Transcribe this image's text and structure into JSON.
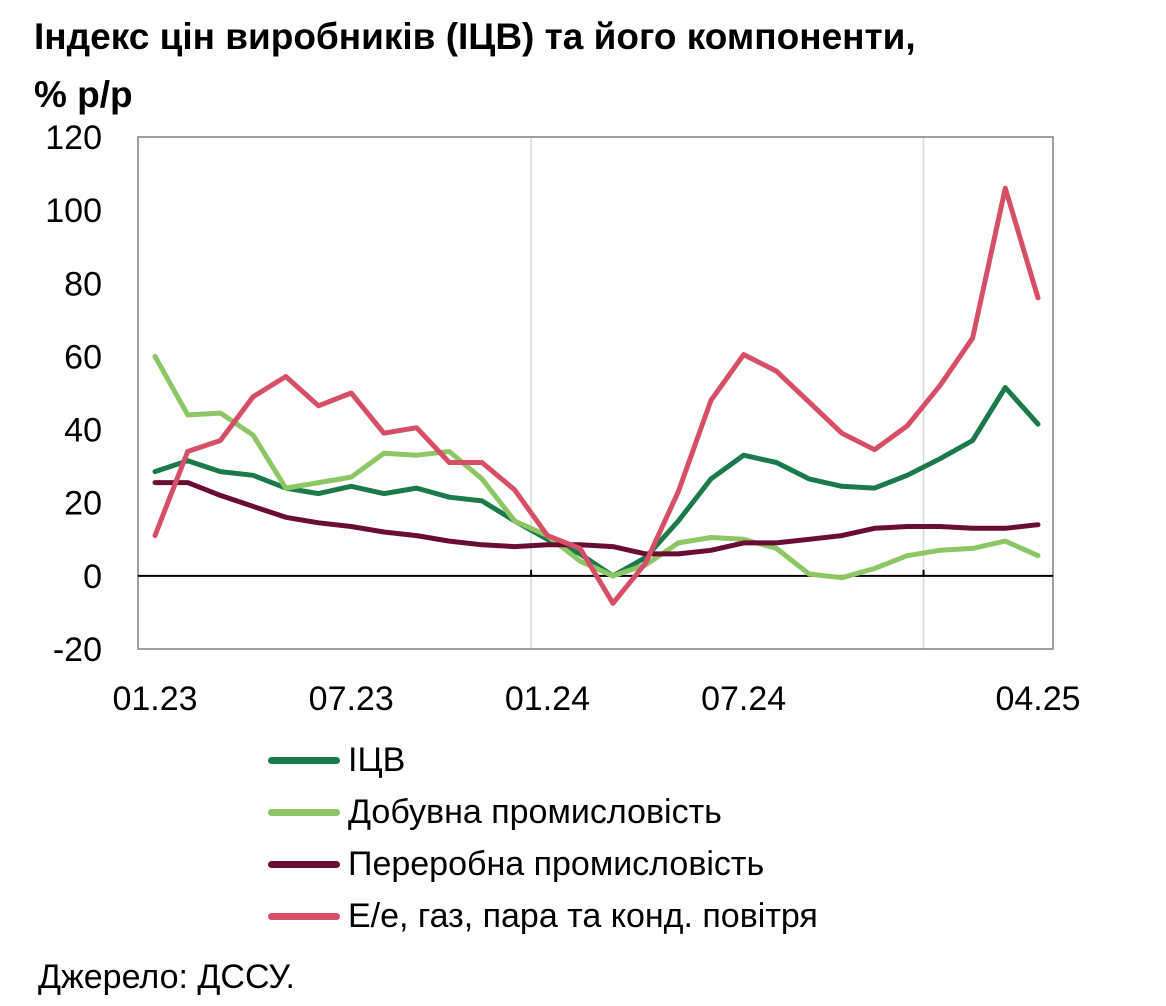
{
  "title": {
    "line1": "Індекс цін виробників (ІЦВ) та його компоненти,",
    "line2": "% р/р"
  },
  "source": "Джерело: ДССУ.",
  "chart_data": {
    "type": "line",
    "x": [
      "01.23",
      "02.23",
      "03.23",
      "04.23",
      "05.23",
      "06.23",
      "07.23",
      "08.23",
      "09.23",
      "10.23",
      "11.23",
      "12.23",
      "01.24",
      "02.24",
      "03.24",
      "04.24",
      "05.24",
      "06.24",
      "07.24",
      "08.24",
      "09.24",
      "10.24",
      "11.24",
      "12.24",
      "01.25",
      "02.25",
      "03.25",
      "04.25"
    ],
    "x_tick_labels": [
      {
        "index": 0,
        "label": "01.23"
      },
      {
        "index": 6,
        "label": "07.23"
      },
      {
        "index": 12,
        "label": "01.24"
      },
      {
        "index": 18,
        "label": "07.24"
      },
      {
        "index": 27,
        "label": "04.25"
      }
    ],
    "ylim": [
      -20,
      120
    ],
    "yticks": [
      -20,
      0,
      20,
      40,
      60,
      80,
      100,
      120
    ],
    "grid": "vertical at 01.24 and 01.25",
    "legend_position": "bottom",
    "series": [
      {
        "name": "ІЦВ",
        "color": "#1a7a4a",
        "values": [
          28.5,
          31.5,
          28.5,
          27.5,
          24,
          22.5,
          24.5,
          22.5,
          24,
          21.5,
          20.5,
          15,
          10,
          6,
          0,
          5,
          15,
          26.5,
          33,
          31,
          26.5,
          24.5,
          24,
          27.5,
          32,
          37,
          51.5,
          41.5
        ]
      },
      {
        "name": "Добувна промисловість",
        "color": "#8dc665",
        "values": [
          60,
          44,
          44.5,
          38.5,
          24,
          25.5,
          27,
          33.5,
          33,
          34,
          26.5,
          15,
          11,
          4,
          0,
          3,
          9,
          10.5,
          10,
          7.5,
          0.5,
          -0.5,
          2,
          5.5,
          7,
          7.5,
          9.5,
          5.5
        ]
      },
      {
        "name": "Переробна промисловість",
        "color": "#6b0d32",
        "values": [
          25.5,
          25.5,
          22,
          19,
          16,
          14.5,
          13.5,
          12,
          11,
          9.5,
          8.5,
          8,
          8.5,
          8.5,
          8,
          6,
          6,
          7,
          9,
          9,
          10,
          11,
          13,
          13.5,
          13.5,
          13,
          13,
          14
        ]
      },
      {
        "name": "Е/е, газ, пара та конд. повітря",
        "color": "#d64f66",
        "values": [
          11,
          34,
          37,
          49,
          54.5,
          46.5,
          50,
          39,
          40.5,
          31,
          31,
          23.5,
          11,
          7.5,
          -7.5,
          3.5,
          23,
          48,
          60.5,
          56,
          47.5,
          39,
          34.5,
          41,
          52,
          65,
          106,
          76
        ]
      }
    ]
  }
}
